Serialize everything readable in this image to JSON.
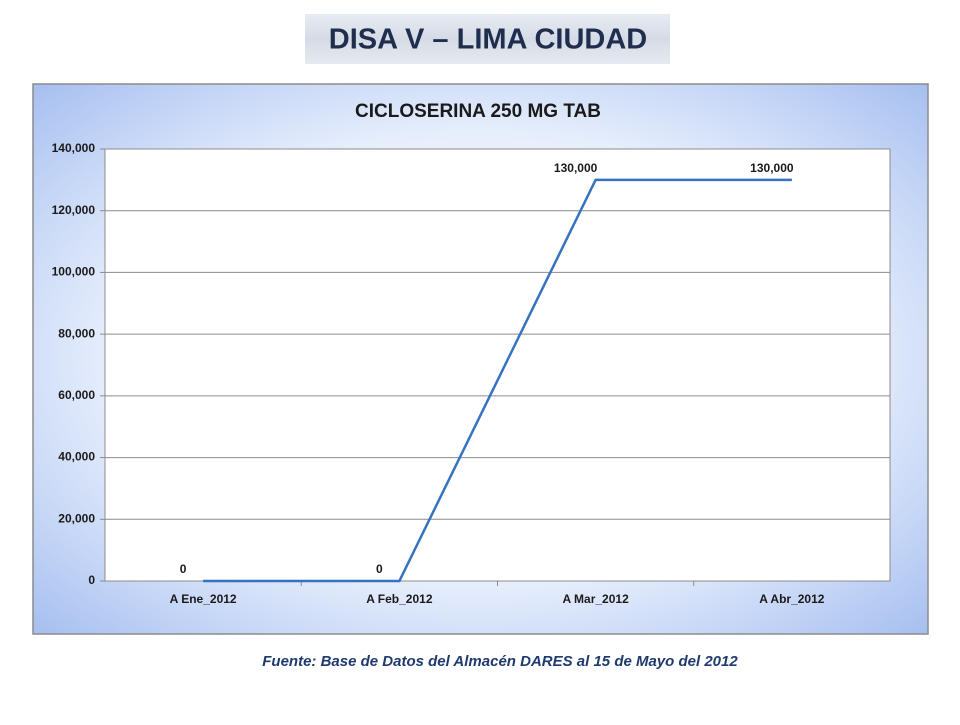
{
  "header": {
    "title": "DISA V – LIMA CIUDAD"
  },
  "chart_data": {
    "type": "line",
    "title": "CICLOSERINA 250 MG TAB",
    "categories": [
      "A Ene_2012",
      "A Feb_2012",
      "A Mar_2012",
      "A Abr_2012"
    ],
    "values": [
      0,
      0,
      130000,
      130000
    ],
    "value_labels": [
      "0",
      "0",
      "130,000",
      "130,000"
    ],
    "color": "#3572c0",
    "ylim": [
      0,
      140000
    ],
    "yticks": [
      0,
      {
        "value": 20000,
        "label": "20,000"
      },
      {
        "value": 40000,
        "label": "40,000"
      },
      {
        "value": 60000,
        "label": "60,000"
      },
      {
        "value": 80000,
        "label": "80,000"
      },
      {
        "value": 100000,
        "label": "100,000"
      },
      {
        "value": 120000,
        "label": "120,000"
      },
      {
        "value": 140000,
        "label": "140,000"
      }
    ],
    "grid": true
  },
  "footer": {
    "source": "Fuente: Base de Datos del Almacén DARES al 15 de Mayo del 2012"
  }
}
